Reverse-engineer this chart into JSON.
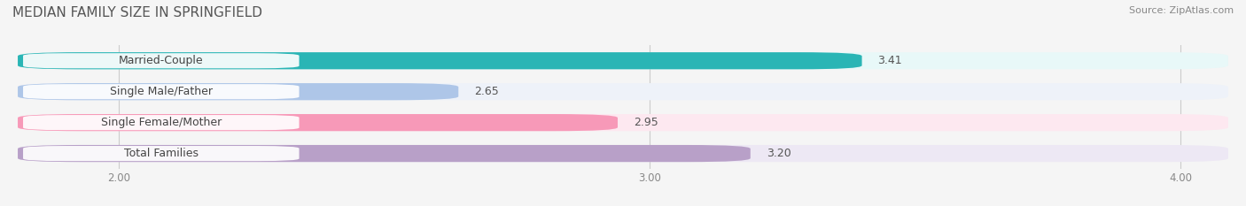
{
  "title": "MEDIAN FAMILY SIZE IN SPRINGFIELD",
  "source": "Source: ZipAtlas.com",
  "categories": [
    "Married-Couple",
    "Single Male/Father",
    "Single Female/Mother",
    "Total Families"
  ],
  "values": [
    3.41,
    2.65,
    2.95,
    3.2
  ],
  "bar_colors": [
    "#2ab5b5",
    "#aec6e8",
    "#f799b8",
    "#b8a0c8"
  ],
  "bar_bg_colors": [
    "#e8f8f8",
    "#eef2f9",
    "#fde8f0",
    "#ede8f4"
  ],
  "label_colors": [
    "#2ab5b5",
    "#aec6e8",
    "#f799b8",
    "#b8a0c8"
  ],
  "xmin": 1.8,
  "xmax": 4.1,
  "xticks": [
    2.0,
    3.0,
    4.0
  ],
  "xtick_labels": [
    "2.00",
    "3.00",
    "4.00"
  ],
  "bar_height": 0.55,
  "title_fontsize": 11,
  "label_fontsize": 9,
  "value_fontsize": 9,
  "tick_fontsize": 8.5,
  "source_fontsize": 8,
  "background_color": "#f5f5f5"
}
